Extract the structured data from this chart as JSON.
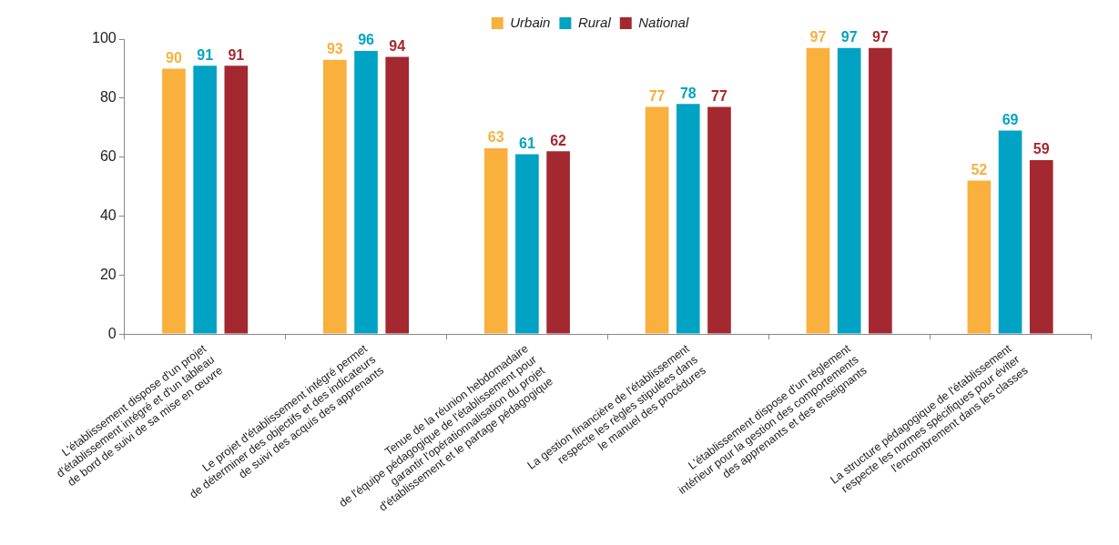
{
  "chart_data": {
    "type": "bar",
    "categories": [
      "L'établissement dispose d'un projet\nd'établissement intégré et d'un tableau\nde bord de suivi de sa mise en œuvre",
      "Le projet d'établissement intégré permet\nde déterminer des objectifs et des indicateurs\nde suivi des acquis des apprenants",
      "Tenue de la réunion hebdomadaire\nde l'équipe pédagogique de l'établissement pour\ngarantir l'opérationnalisation du projet\nd'établissement et le partage pédagogique",
      "La gestion financière de l'établissement\nrespecte les règles stipulées dans\nle manuel des procédures",
      "L'établissement dispose d'un règlement\nintérieur pour la gestion des comportements\ndes apprenants et des enseignants",
      "La structure pédagogique de l'établissement\nrespecte les normes spécifiques pour éviter\nl'encombrement dans les classes"
    ],
    "series": [
      {
        "name": "Urbain",
        "color": "#f9b03d",
        "values": [
          90,
          93,
          63,
          77,
          97,
          52
        ]
      },
      {
        "name": "Rural",
        "color": "#00a3c4",
        "values": [
          91,
          96,
          61,
          78,
          97,
          69
        ]
      },
      {
        "name": "National",
        "color": "#a4282f",
        "values": [
          91,
          94,
          62,
          77,
          97,
          59
        ]
      }
    ],
    "ylim": [
      0,
      100
    ],
    "yticks": [
      0,
      20,
      40,
      60,
      80,
      100
    ],
    "grid": false,
    "legend": "top",
    "data_labels": true
  }
}
